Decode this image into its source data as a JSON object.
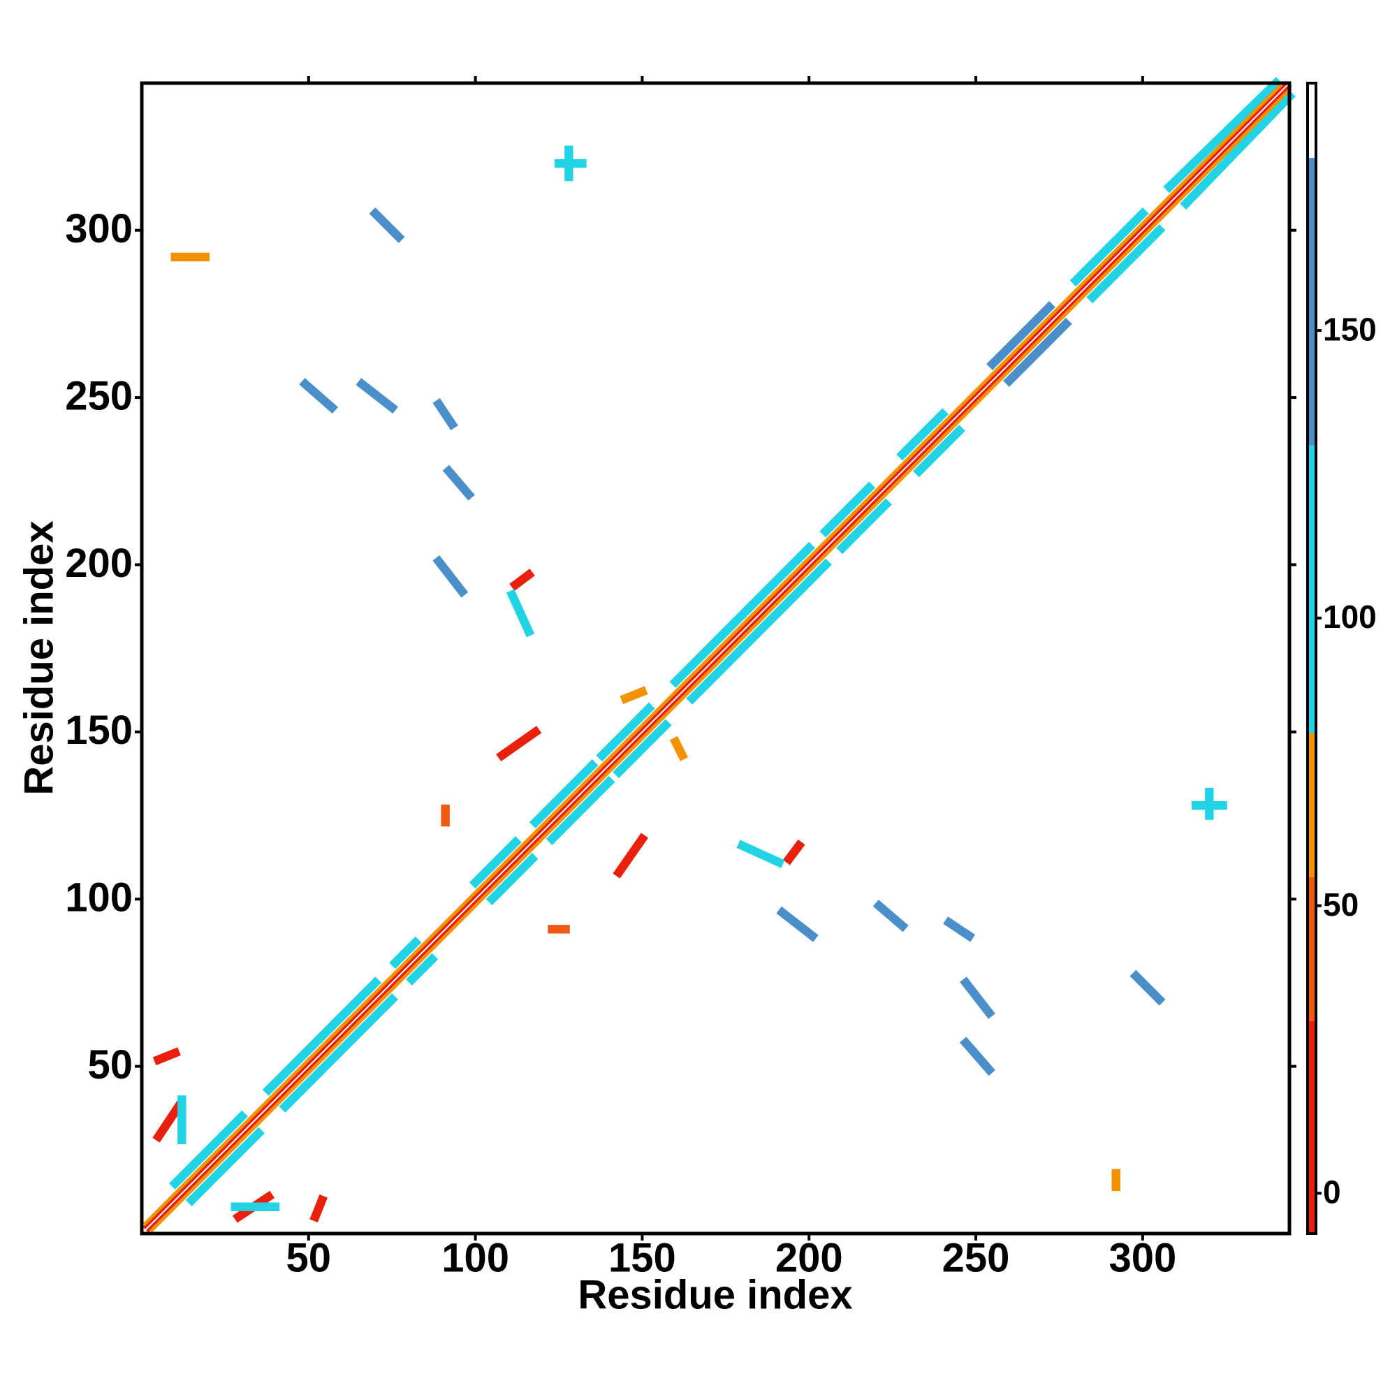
{
  "chart_data": {
    "type": "contact-map",
    "xlabel": "Residue index",
    "ylabel": "Residue index",
    "xlim": [
      0,
      344
    ],
    "ylim": [
      0,
      344
    ],
    "xticks": [
      50,
      100,
      150,
      200,
      250,
      300
    ],
    "yticks": [
      50,
      100,
      150,
      200,
      250,
      300
    ],
    "colorbar": {
      "clim": [
        -7,
        193
      ],
      "ticks": [
        0,
        50,
        100,
        150
      ],
      "bands": [
        {
          "from": -7,
          "to": 30,
          "color": "#e8200c"
        },
        {
          "from": 30,
          "to": 55,
          "color": "#f05a10"
        },
        {
          "from": 55,
          "to": 80,
          "color": "#f39200"
        },
        {
          "from": 80,
          "to": 130,
          "color": "#22d3e6"
        },
        {
          "from": 130,
          "to": 180,
          "color": "#4a8fc9"
        },
        {
          "from": 180,
          "to": 193,
          "color": "#ffffff"
        }
      ]
    },
    "diagonal": [
      {
        "x": [
          1,
          343
        ],
        "y": [
          2,
          344
        ],
        "value": 0
      },
      {
        "x": [
          2,
          344
        ],
        "y": [
          1,
          343
        ],
        "value": 0
      },
      {
        "x": [
          1,
          342
        ],
        "y": [
          3,
          344
        ],
        "value": 60
      },
      {
        "x": [
          3,
          344
        ],
        "y": [
          1,
          342
        ],
        "value": 60
      }
    ],
    "contacts": [
      {
        "x": [
          10,
          30
        ],
        "y": [
          15,
          35
        ],
        "value": 100
      },
      {
        "x": [
          15,
          35
        ],
        "y": [
          10,
          30
        ],
        "value": 100
      },
      {
        "x": [
          38,
          70
        ],
        "y": [
          43,
          75
        ],
        "value": 100
      },
      {
        "x": [
          43,
          75
        ],
        "y": [
          38,
          70
        ],
        "value": 100
      },
      {
        "x": [
          76,
          82
        ],
        "y": [
          81,
          87
        ],
        "value": 100
      },
      {
        "x": [
          81,
          87
        ],
        "y": [
          76,
          82
        ],
        "value": 100
      },
      {
        "x": [
          100,
          112
        ],
        "y": [
          105,
          117
        ],
        "value": 100
      },
      {
        "x": [
          105,
          117
        ],
        "y": [
          100,
          112
        ],
        "value": 100
      },
      {
        "x": [
          118,
          135
        ],
        "y": [
          123,
          140
        ],
        "value": 100
      },
      {
        "x": [
          123,
          140
        ],
        "y": [
          118,
          135
        ],
        "value": 100
      },
      {
        "x": [
          138,
          152
        ],
        "y": [
          143,
          157
        ],
        "value": 100
      },
      {
        "x": [
          143,
          157
        ],
        "y": [
          138,
          152
        ],
        "value": 100
      },
      {
        "x": [
          160,
          200
        ],
        "y": [
          165,
          205
        ],
        "value": 100
      },
      {
        "x": [
          165,
          205
        ],
        "y": [
          160,
          200
        ],
        "value": 100
      },
      {
        "x": [
          205,
          218
        ],
        "y": [
          210,
          223
        ],
        "value": 100
      },
      {
        "x": [
          210,
          223
        ],
        "y": [
          205,
          218
        ],
        "value": 100
      },
      {
        "x": [
          228,
          240
        ],
        "y": [
          233,
          245
        ],
        "value": 100
      },
      {
        "x": [
          233,
          245
        ],
        "y": [
          228,
          240
        ],
        "value": 100
      },
      {
        "x": [
          255,
          272
        ],
        "y": [
          260,
          277
        ],
        "value": 140
      },
      {
        "x": [
          260,
          277
        ],
        "y": [
          255,
          272
        ],
        "value": 140
      },
      {
        "x": [
          280,
          300
        ],
        "y": [
          285,
          305
        ],
        "value": 100
      },
      {
        "x": [
          285,
          305
        ],
        "y": [
          280,
          300
        ],
        "value": 100
      },
      {
        "x": [
          308,
          340
        ],
        "y": [
          313,
          344
        ],
        "value": 100
      },
      {
        "x": [
          313,
          344
        ],
        "y": [
          308,
          340
        ],
        "value": 100
      },
      {
        "x": [
          70,
          77
        ],
        "y": [
          305,
          298
        ],
        "value": 140
      },
      {
        "x": [
          125,
          132
        ],
        "y": [
          320,
          320
        ],
        "value": 110
      },
      {
        "x": [
          128,
          128
        ],
        "y": [
          316,
          324
        ],
        "value": 110
      },
      {
        "x": [
          49,
          57
        ],
        "y": [
          254,
          247
        ],
        "value": 135
      },
      {
        "x": [
          66,
          75
        ],
        "y": [
          254,
          247
        ],
        "value": 135
      },
      {
        "x": [
          89,
          93
        ],
        "y": [
          248,
          242
        ],
        "value": 135
      },
      {
        "x": [
          92,
          98
        ],
        "y": [
          228,
          221
        ],
        "value": 135
      },
      {
        "x": [
          89,
          96
        ],
        "y": [
          201,
          192
        ],
        "value": 135
      },
      {
        "x": [
          112,
          116
        ],
        "y": [
          194,
          197
        ],
        "value": 10
      },
      {
        "x": [
          111,
          116
        ],
        "y": [
          191,
          180
        ],
        "value": 95
      },
      {
        "x": [
          108,
          118
        ],
        "y": [
          143,
          150
        ],
        "value": 15
      },
      {
        "x": [
          5,
          10
        ],
        "y": [
          52,
          54
        ],
        "value": 15
      },
      {
        "x": [
          5,
          11
        ],
        "y": [
          29,
          38
        ],
        "value": 15
      },
      {
        "x": [
          12,
          12
        ],
        "y": [
          28,
          40
        ],
        "value": 95
      },
      {
        "x": [
          298,
          305
        ],
        "y": [
          77,
          70
        ],
        "value": 140
      },
      {
        "x": [
          320,
          320
        ],
        "y": [
          125,
          132
        ],
        "value": 110
      },
      {
        "x": [
          316,
          324
        ],
        "y": [
          128,
          128
        ],
        "value": 110
      },
      {
        "x": [
          247,
          254
        ],
        "y": [
          57,
          49
        ],
        "value": 135
      },
      {
        "x": [
          247,
          254
        ],
        "y": [
          75,
          66
        ],
        "value": 135
      },
      {
        "x": [
          242,
          248
        ],
        "y": [
          93,
          89
        ],
        "value": 135
      },
      {
        "x": [
          221,
          228
        ],
        "y": [
          98,
          92
        ],
        "value": 135
      },
      {
        "x": [
          192,
          201
        ],
        "y": [
          96,
          89
        ],
        "value": 135
      },
      {
        "x": [
          194,
          197
        ],
        "y": [
          112,
          116
        ],
        "value": 10
      },
      {
        "x": [
          180,
          191
        ],
        "y": [
          116,
          111
        ],
        "value": 95
      },
      {
        "x": [
          143,
          150
        ],
        "y": [
          108,
          118
        ],
        "value": 15
      },
      {
        "x": [
          52,
          54
        ],
        "y": [
          5,
          10
        ],
        "value": 15
      },
      {
        "x": [
          29,
          38
        ],
        "y": [
          5,
          11
        ],
        "value": 15
      },
      {
        "x": [
          28,
          40
        ],
        "y": [
          8,
          8
        ],
        "value": 95
      },
      {
        "x": [
          145,
          150
        ],
        "y": [
          160,
          162
        ],
        "value": 55
      },
      {
        "x": [
          160,
          162
        ],
        "y": [
          147,
          143
        ],
        "value": 55
      },
      {
        "x": [
          10,
          19
        ],
        "y": [
          292,
          292
        ],
        "value": 60
      },
      {
        "x": [
          292,
          292
        ],
        "y": [
          14,
          18
        ],
        "value": 60
      },
      {
        "x": [
          123,
          127
        ],
        "y": [
          91,
          91
        ],
        "value": 40
      },
      {
        "x": [
          91,
          91
        ],
        "y": [
          123,
          127
        ],
        "value": 40
      }
    ]
  }
}
